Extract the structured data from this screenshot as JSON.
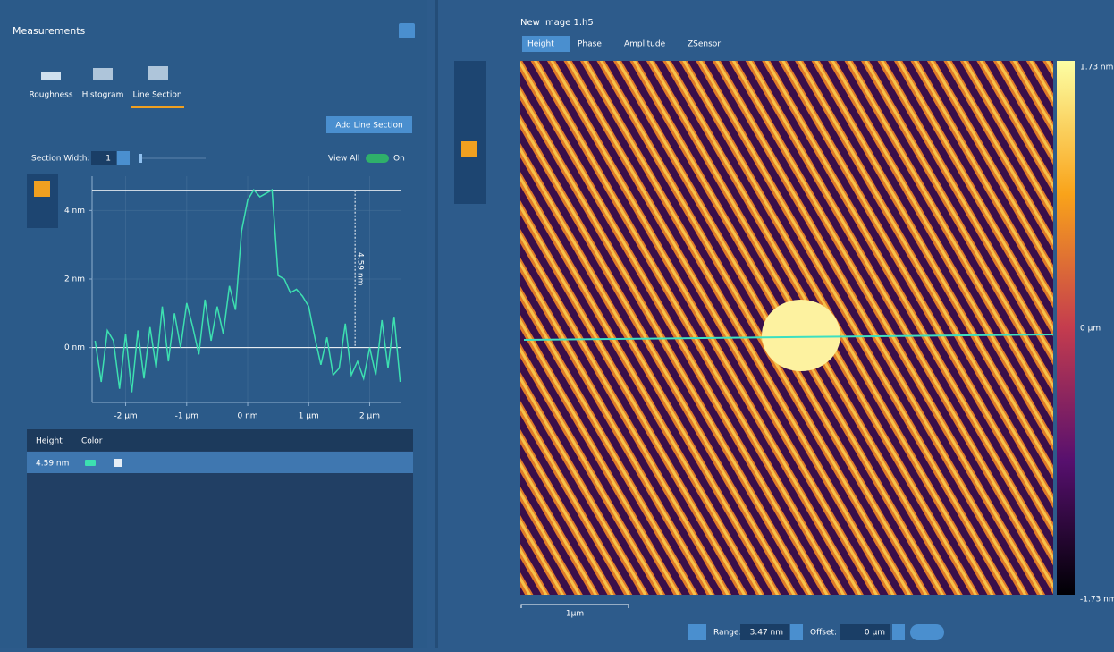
{
  "panel": {
    "title": "Measurements",
    "tools": [
      "Roughness",
      "Histogram",
      "Line Section"
    ],
    "add_button": "Add Line Section",
    "section_width_label": "Section Width:",
    "section_width": "1",
    "view_all": "View All",
    "toggle": "On",
    "table": {
      "headers": [
        "Height",
        "Color"
      ],
      "rows": [
        [
          "4.59 nm"
        ]
      ]
    }
  },
  "image": {
    "title": "New Image 1.h5",
    "tabs": [
      "Height",
      "Phase",
      "Amplitude",
      "ZSensor"
    ],
    "colorbar_labels": [
      "1.73 nm",
      "0 µm",
      "-1.73 nm"
    ],
    "scale_bar": "1µm",
    "range_label": "Range:",
    "range": "3.47 nm",
    "offset_label": "Offset:",
    "offset": "0 µm"
  },
  "chart_data": {
    "type": "line",
    "color": "#3de0b0",
    "grid": true,
    "x": [
      -2.5,
      -2.4,
      -2.3,
      -2.2,
      -2.1,
      -2.0,
      -1.9,
      -1.8,
      -1.7,
      -1.6,
      -1.5,
      -1.4,
      -1.3,
      -1.2,
      -1.1,
      -1.0,
      -0.9,
      -0.8,
      -0.7,
      -0.6,
      -0.5,
      -0.4,
      -0.3,
      -0.2,
      -0.1,
      0.0,
      0.1,
      0.2,
      0.3,
      0.4,
      0.5,
      0.6,
      0.7,
      0.8,
      0.9,
      1.0,
      1.1,
      1.2,
      1.3,
      1.4,
      1.5,
      1.6,
      1.7,
      1.8,
      1.9,
      2.0,
      2.1,
      2.2,
      2.3,
      2.4,
      2.5
    ],
    "values": [
      0.2,
      -1.0,
      0.5,
      0.2,
      -1.2,
      0.4,
      -1.3,
      0.5,
      -0.9,
      0.6,
      -0.6,
      1.2,
      -0.4,
      1.0,
      0.0,
      1.3,
      0.6,
      -0.2,
      1.4,
      0.2,
      1.2,
      0.4,
      1.8,
      1.1,
      3.4,
      4.3,
      4.6,
      4.4,
      4.5,
      4.6,
      2.1,
      2.0,
      1.6,
      1.7,
      1.5,
      1.2,
      0.3,
      -0.5,
      0.3,
      -0.8,
      -0.6,
      0.7,
      -0.8,
      -0.4,
      -0.9,
      0.0,
      -0.8,
      0.8,
      -0.6,
      0.9,
      -1.0
    ],
    "xlim": [
      -2.55,
      2.52
    ],
    "ylim": [
      -1.6,
      5.0
    ],
    "xticks": [
      {
        "value": -2,
        "label": "-2 µm"
      },
      {
        "value": -1,
        "label": "-1 µm"
      },
      {
        "value": 0,
        "label": "0 nm"
      },
      {
        "value": 1,
        "label": "1 µm"
      },
      {
        "value": 2,
        "label": "2 µm"
      }
    ],
    "yticks": [
      {
        "value": 0,
        "label": "0 nm"
      },
      {
        "value": 2,
        "label": "2 nm"
      },
      {
        "value": 4,
        "label": "4 nm"
      }
    ],
    "measurement": {
      "value": 4.59,
      "label": "4.59 nm",
      "x": 1.76
    }
  }
}
